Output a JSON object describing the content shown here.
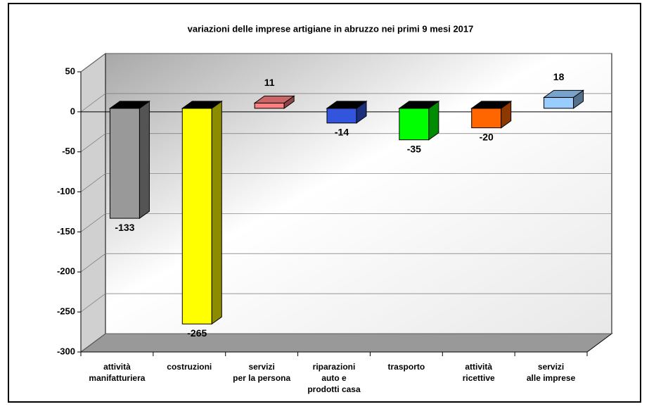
{
  "chart_data": {
    "type": "bar3d",
    "title": "variazioni delle imprese artigiane in abruzzo nei primi 9 mesi 2017",
    "categories": [
      [
        "attività",
        "manifatturiera"
      ],
      [
        "costruzioni"
      ],
      [
        "servizi",
        "per la persona"
      ],
      [
        "riparazioni",
        "auto e",
        "prodotti casa"
      ],
      [
        "trasporto"
      ],
      [
        "attività",
        "ricettive"
      ],
      [
        "servizi",
        "alle imprese"
      ]
    ],
    "values": [
      -133,
      -265,
      11,
      -14,
      -35,
      -20,
      18
    ],
    "colors": [
      "#999999",
      "#ffff00",
      "#ff7f7f",
      "#3355dd",
      "#00ff00",
      "#ff6600",
      "#99ccff"
    ],
    "ylim": [
      -300,
      50
    ],
    "yticks": [
      -300,
      -250,
      -200,
      -150,
      -100,
      -50,
      0,
      50
    ],
    "grid": true
  }
}
